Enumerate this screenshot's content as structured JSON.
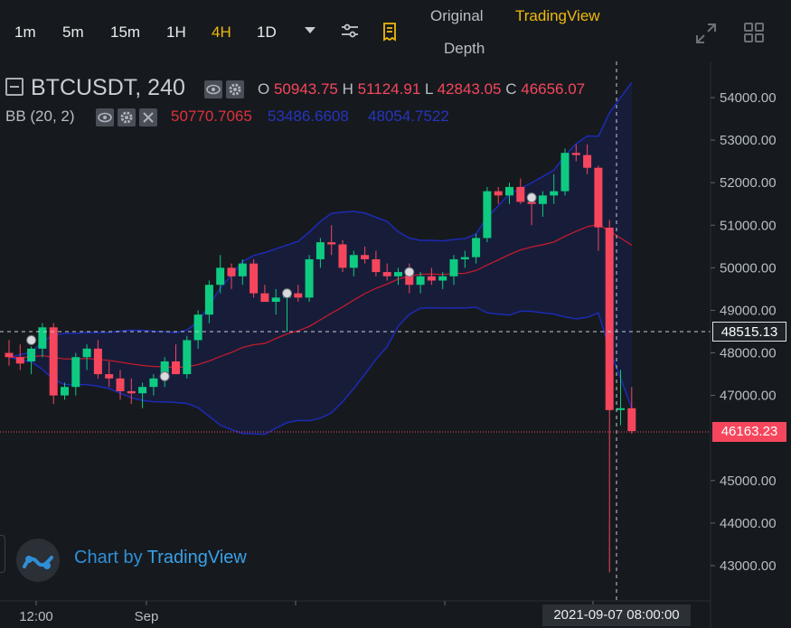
{
  "toolbar": {
    "intervals": [
      "1m",
      "5m",
      "15m",
      "1H",
      "4H",
      "1D"
    ],
    "active_interval": "4H",
    "views": {
      "original": "Original",
      "tradingview": "TradingView",
      "depth": "Depth"
    },
    "active_view": "TradingView",
    "icons": [
      "chevron-down-icon",
      "settings-sliders-icon",
      "indicator-list-icon",
      "fullscreen-icon",
      "grid-layout-icon"
    ]
  },
  "legend": {
    "symbol": "BTCUSDT, 240",
    "ohlc": {
      "o_label": "O",
      "o": "50943.75",
      "h_label": "H",
      "h": "51124.91",
      "l_label": "L",
      "l": "42843.05",
      "c_label": "C",
      "c": "46656.07"
    },
    "bb": {
      "name": "BB (20, 2)",
      "basis": "50770.7065",
      "upper": "53486.6608",
      "lower": "48054.7522"
    }
  },
  "colors": {
    "up": "#0ecb81",
    "down": "#f6465d",
    "bb_basis": "#c11a2d",
    "bb_band": "#1d2ab5",
    "accent": "#f0b90b"
  },
  "watermark": {
    "prefix": "Chart by ",
    "brand": "TradingView"
  },
  "crosshair": {
    "price": "48515.13",
    "date": "2021-09-07 08:00:00"
  },
  "last_price": "46163.23",
  "chart_data": {
    "type": "candlestick",
    "y_ticks": [
      "54000.00",
      "53000.00",
      "52000.00",
      "51000.00",
      "50000.00",
      "49000.00",
      "48000.00",
      "47000.00",
      "45000.00",
      "44000.00",
      "43000.00"
    ],
    "x_ticks": [
      "12:00",
      "Sep"
    ],
    "candles": [
      {
        "o": 48000,
        "h": 48300,
        "l": 47700,
        "c": 47900
      },
      {
        "o": 47900,
        "h": 48200,
        "l": 47600,
        "c": 47750
      },
      {
        "o": 47800,
        "h": 48150,
        "l": 47500,
        "c": 48100
      },
      {
        "o": 48100,
        "h": 48700,
        "l": 47900,
        "c": 48600
      },
      {
        "o": 48600,
        "h": 48700,
        "l": 46800,
        "c": 47000
      },
      {
        "o": 47000,
        "h": 47300,
        "l": 46900,
        "c": 47200
      },
      {
        "o": 47200,
        "h": 48000,
        "l": 47000,
        "c": 47900
      },
      {
        "o": 47900,
        "h": 48200,
        "l": 47600,
        "c": 48100
      },
      {
        "o": 48100,
        "h": 48300,
        "l": 47400,
        "c": 47500
      },
      {
        "o": 47500,
        "h": 47800,
        "l": 47200,
        "c": 47400
      },
      {
        "o": 47400,
        "h": 47600,
        "l": 46900,
        "c": 47100
      },
      {
        "o": 47100,
        "h": 47400,
        "l": 46800,
        "c": 47050
      },
      {
        "o": 47050,
        "h": 47300,
        "l": 46700,
        "c": 47200
      },
      {
        "o": 47200,
        "h": 47500,
        "l": 47000,
        "c": 47400
      },
      {
        "o": 47400,
        "h": 47900,
        "l": 47200,
        "c": 47800
      },
      {
        "o": 47800,
        "h": 48200,
        "l": 47500,
        "c": 47500
      },
      {
        "o": 47500,
        "h": 48400,
        "l": 47400,
        "c": 48300
      },
      {
        "o": 48300,
        "h": 49000,
        "l": 48100,
        "c": 48900
      },
      {
        "o": 48900,
        "h": 49700,
        "l": 48700,
        "c": 49600
      },
      {
        "o": 49600,
        "h": 50300,
        "l": 49400,
        "c": 50000
      },
      {
        "o": 50000,
        "h": 50100,
        "l": 49500,
        "c": 49800
      },
      {
        "o": 49800,
        "h": 50200,
        "l": 49600,
        "c": 50100
      },
      {
        "o": 50100,
        "h": 50200,
        "l": 49300,
        "c": 49400
      },
      {
        "o": 49400,
        "h": 49600,
        "l": 49200,
        "c": 49200
      },
      {
        "o": 49200,
        "h": 49500,
        "l": 48900,
        "c": 49300
      },
      {
        "o": 49300,
        "h": 49500,
        "l": 48500,
        "c": 49400
      },
      {
        "o": 49400,
        "h": 49600,
        "l": 49200,
        "c": 49300
      },
      {
        "o": 49300,
        "h": 50300,
        "l": 49200,
        "c": 50200
      },
      {
        "o": 50200,
        "h": 50700,
        "l": 50000,
        "c": 50600
      },
      {
        "o": 50600,
        "h": 51000,
        "l": 50300,
        "c": 50550
      },
      {
        "o": 50550,
        "h": 50650,
        "l": 49900,
        "c": 50000
      },
      {
        "o": 50000,
        "h": 50400,
        "l": 49800,
        "c": 50300
      },
      {
        "o": 50300,
        "h": 50500,
        "l": 50100,
        "c": 50200
      },
      {
        "o": 50200,
        "h": 50400,
        "l": 49800,
        "c": 49900
      },
      {
        "o": 49900,
        "h": 50100,
        "l": 49700,
        "c": 49800
      },
      {
        "o": 49800,
        "h": 50000,
        "l": 49600,
        "c": 49900
      },
      {
        "o": 49900,
        "h": 50100,
        "l": 49400,
        "c": 49600
      },
      {
        "o": 49600,
        "h": 49900,
        "l": 49400,
        "c": 49800
      },
      {
        "o": 49800,
        "h": 50000,
        "l": 49600,
        "c": 49700
      },
      {
        "o": 49700,
        "h": 49900,
        "l": 49500,
        "c": 49800
      },
      {
        "o": 49800,
        "h": 50300,
        "l": 49600,
        "c": 50200
      },
      {
        "o": 50200,
        "h": 50400,
        "l": 50000,
        "c": 50250
      },
      {
        "o": 50250,
        "h": 50800,
        "l": 50100,
        "c": 50700
      },
      {
        "o": 50700,
        "h": 51900,
        "l": 50600,
        "c": 51800
      },
      {
        "o": 51800,
        "h": 51900,
        "l": 51500,
        "c": 51700
      },
      {
        "o": 51700,
        "h": 52000,
        "l": 51500,
        "c": 51900
      },
      {
        "o": 51900,
        "h": 52100,
        "l": 51500,
        "c": 51550
      },
      {
        "o": 51550,
        "h": 51700,
        "l": 51000,
        "c": 51500
      },
      {
        "o": 51500,
        "h": 51800,
        "l": 51200,
        "c": 51700
      },
      {
        "o": 51700,
        "h": 52200,
        "l": 51500,
        "c": 51800
      },
      {
        "o": 51800,
        "h": 52800,
        "l": 51700,
        "c": 52700
      },
      {
        "o": 52700,
        "h": 52900,
        "l": 52500,
        "c": 52650
      },
      {
        "o": 52650,
        "h": 52900,
        "l": 52200,
        "c": 52350
      },
      {
        "o": 52350,
        "h": 52400,
        "l": 50400,
        "c": 50950
      },
      {
        "o": 50943.75,
        "h": 51124.91,
        "l": 42843.05,
        "c": 46656.07
      },
      {
        "o": 46656,
        "h": 47600,
        "l": 46300,
        "c": 46700
      },
      {
        "o": 46700,
        "h": 47200,
        "l": 46100,
        "c": 46163
      }
    ]
  }
}
